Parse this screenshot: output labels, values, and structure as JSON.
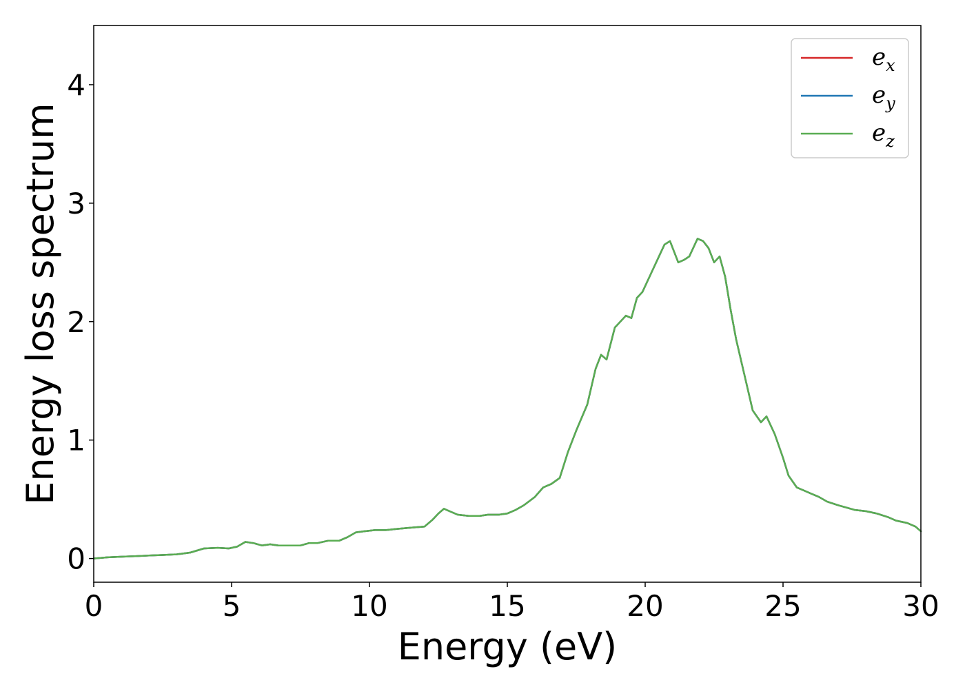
{
  "chart_data": {
    "type": "line",
    "title": "",
    "xlabel": "Energy (eV)",
    "ylabel": "Energy loss spectrum",
    "xlim": [
      0,
      30
    ],
    "ylim": [
      -0.2,
      4.5
    ],
    "xticks": [
      0,
      5,
      10,
      15,
      20,
      25,
      30
    ],
    "xtick_labels": [
      "0",
      "5",
      "10",
      "15",
      "20",
      "25",
      "30"
    ],
    "yticks": [
      0,
      1,
      2,
      3,
      4
    ],
    "ytick_labels": [
      "0",
      "1",
      "2",
      "3",
      "4"
    ],
    "grid": false,
    "legend_position": "top-right",
    "series": [
      {
        "name": "e_x",
        "legend_base": "e",
        "legend_sub": "x",
        "color": "#d62728",
        "x": [
          0,
          0.5,
          1,
          1.5,
          2,
          2.5,
          3,
          3.5,
          4,
          4.5,
          4.9,
          5.2,
          5.5,
          5.8,
          6.1,
          6.4,
          6.7,
          7,
          7.5,
          7.8,
          8.1,
          8.5,
          8.9,
          9.2,
          9.5,
          9.8,
          10.2,
          10.6,
          11,
          11.5,
          12,
          12.3,
          12.5,
          12.7,
          12.9,
          13.2,
          13.6,
          14,
          14.3,
          14.7,
          15,
          15.3,
          15.6,
          16,
          16.3,
          16.6,
          16.9,
          17.2,
          17.5,
          17.9,
          18.2,
          18.4,
          18.6,
          18.9,
          19.1,
          19.3,
          19.5,
          19.7,
          19.9,
          20.1,
          20.3,
          20.5,
          20.7,
          20.9,
          21.2,
          21.4,
          21.6,
          21.9,
          22.1,
          22.3,
          22.5,
          22.7,
          22.9,
          23.1,
          23.3,
          23.6,
          23.9,
          24.2,
          24.4,
          24.7,
          25,
          25.2,
          25.5,
          25.8,
          26,
          26.3,
          26.6,
          27,
          27.3,
          27.6,
          28,
          28.4,
          28.8,
          29.1,
          29.5,
          29.8,
          30
        ],
        "y": [
          0,
          0.01,
          0.015,
          0.02,
          0.025,
          0.03,
          0.035,
          0.05,
          0.085,
          0.09,
          0.085,
          0.1,
          0.14,
          0.13,
          0.11,
          0.12,
          0.11,
          0.11,
          0.11,
          0.13,
          0.13,
          0.15,
          0.15,
          0.18,
          0.22,
          0.23,
          0.24,
          0.24,
          0.25,
          0.26,
          0.27,
          0.33,
          0.38,
          0.42,
          0.4,
          0.37,
          0.36,
          0.36,
          0.37,
          0.37,
          0.38,
          0.41,
          0.45,
          0.52,
          0.6,
          0.63,
          0.68,
          0.9,
          1.08,
          1.3,
          1.6,
          1.72,
          1.68,
          1.95,
          2,
          2.05,
          2.03,
          2.2,
          2.25,
          2.35,
          2.45,
          2.55,
          2.65,
          2.68,
          2.5,
          2.52,
          2.55,
          2.7,
          2.68,
          2.62,
          2.5,
          2.55,
          2.38,
          2.1,
          1.85,
          1.55,
          1.25,
          1.15,
          1.2,
          1.05,
          0.85,
          0.7,
          0.6,
          0.57,
          0.55,
          0.52,
          0.48,
          0.45,
          0.43,
          0.41,
          0.4,
          0.38,
          0.35,
          0.32,
          0.3,
          0.27,
          0.23
        ]
      },
      {
        "name": "e_y",
        "legend_base": "e",
        "legend_sub": "y",
        "color": "#1f77b4",
        "x": [
          0,
          0.5,
          1,
          1.5,
          2,
          2.5,
          3,
          3.5,
          4,
          4.5,
          4.9,
          5.2,
          5.5,
          5.8,
          6.1,
          6.4,
          6.7,
          7,
          7.5,
          7.8,
          8.1,
          8.5,
          8.9,
          9.2,
          9.5,
          9.8,
          10.2,
          10.6,
          11,
          11.5,
          12,
          12.3,
          12.5,
          12.7,
          12.9,
          13.2,
          13.6,
          14,
          14.3,
          14.7,
          15,
          15.3,
          15.6,
          16,
          16.3,
          16.6,
          16.9,
          17.2,
          17.5,
          17.9,
          18.2,
          18.4,
          18.6,
          18.9,
          19.1,
          19.3,
          19.5,
          19.7,
          19.9,
          20.1,
          20.3,
          20.5,
          20.7,
          20.9,
          21.2,
          21.4,
          21.6,
          21.9,
          22.1,
          22.3,
          22.5,
          22.7,
          22.9,
          23.1,
          23.3,
          23.6,
          23.9,
          24.2,
          24.4,
          24.7,
          25,
          25.2,
          25.5,
          25.8,
          26,
          26.3,
          26.6,
          27,
          27.3,
          27.6,
          28,
          28.4,
          28.8,
          29.1,
          29.5,
          29.8,
          30
        ],
        "y": [
          0,
          0.01,
          0.015,
          0.02,
          0.025,
          0.03,
          0.035,
          0.05,
          0.085,
          0.09,
          0.085,
          0.1,
          0.14,
          0.13,
          0.11,
          0.12,
          0.11,
          0.11,
          0.11,
          0.13,
          0.13,
          0.15,
          0.15,
          0.18,
          0.22,
          0.23,
          0.24,
          0.24,
          0.25,
          0.26,
          0.27,
          0.33,
          0.38,
          0.42,
          0.4,
          0.37,
          0.36,
          0.36,
          0.37,
          0.37,
          0.38,
          0.41,
          0.45,
          0.52,
          0.6,
          0.63,
          0.68,
          0.9,
          1.08,
          1.3,
          1.6,
          1.72,
          1.68,
          1.95,
          2,
          2.05,
          2.03,
          2.2,
          2.25,
          2.35,
          2.45,
          2.55,
          2.65,
          2.68,
          2.5,
          2.52,
          2.55,
          2.7,
          2.68,
          2.62,
          2.5,
          2.55,
          2.38,
          2.1,
          1.85,
          1.55,
          1.25,
          1.15,
          1.2,
          1.05,
          0.85,
          0.7,
          0.6,
          0.57,
          0.55,
          0.52,
          0.48,
          0.45,
          0.43,
          0.41,
          0.4,
          0.38,
          0.35,
          0.32,
          0.3,
          0.27,
          0.23
        ]
      },
      {
        "name": "e_z",
        "legend_base": "e",
        "legend_sub": "z",
        "color": "#5aad52",
        "x": [
          0,
          0.5,
          1,
          1.5,
          2,
          2.5,
          3,
          3.5,
          4,
          4.5,
          4.9,
          5.2,
          5.5,
          5.8,
          6.1,
          6.4,
          6.7,
          7,
          7.5,
          7.8,
          8.1,
          8.5,
          8.9,
          9.2,
          9.5,
          9.8,
          10.2,
          10.6,
          11,
          11.5,
          12,
          12.3,
          12.5,
          12.7,
          12.9,
          13.2,
          13.6,
          14,
          14.3,
          14.7,
          15,
          15.3,
          15.6,
          16,
          16.3,
          16.6,
          16.9,
          17.2,
          17.5,
          17.9,
          18.2,
          18.4,
          18.6,
          18.9,
          19.1,
          19.3,
          19.5,
          19.7,
          19.9,
          20.1,
          20.3,
          20.5,
          20.7,
          20.9,
          21.2,
          21.4,
          21.6,
          21.9,
          22.1,
          22.3,
          22.5,
          22.7,
          22.9,
          23.1,
          23.3,
          23.6,
          23.9,
          24.2,
          24.4,
          24.7,
          25,
          25.2,
          25.5,
          25.8,
          26,
          26.3,
          26.6,
          27,
          27.3,
          27.6,
          28,
          28.4,
          28.8,
          29.1,
          29.5,
          29.8,
          30
        ],
        "y": [
          0,
          0.01,
          0.015,
          0.02,
          0.025,
          0.03,
          0.035,
          0.05,
          0.085,
          0.09,
          0.085,
          0.1,
          0.14,
          0.13,
          0.11,
          0.12,
          0.11,
          0.11,
          0.11,
          0.13,
          0.13,
          0.15,
          0.15,
          0.18,
          0.22,
          0.23,
          0.24,
          0.24,
          0.25,
          0.26,
          0.27,
          0.33,
          0.38,
          0.42,
          0.4,
          0.37,
          0.36,
          0.36,
          0.37,
          0.37,
          0.38,
          0.41,
          0.45,
          0.52,
          0.6,
          0.63,
          0.68,
          0.9,
          1.08,
          1.3,
          1.6,
          1.72,
          1.68,
          1.95,
          2,
          2.05,
          2.03,
          2.2,
          2.25,
          2.35,
          2.45,
          2.55,
          2.65,
          2.68,
          2.5,
          2.52,
          2.55,
          2.7,
          2.68,
          2.62,
          2.5,
          2.55,
          2.38,
          2.1,
          1.85,
          1.55,
          1.25,
          1.15,
          1.2,
          1.05,
          0.85,
          0.7,
          0.6,
          0.57,
          0.55,
          0.52,
          0.48,
          0.45,
          0.43,
          0.41,
          0.4,
          0.38,
          0.35,
          0.32,
          0.3,
          0.27,
          0.23
        ]
      }
    ]
  }
}
